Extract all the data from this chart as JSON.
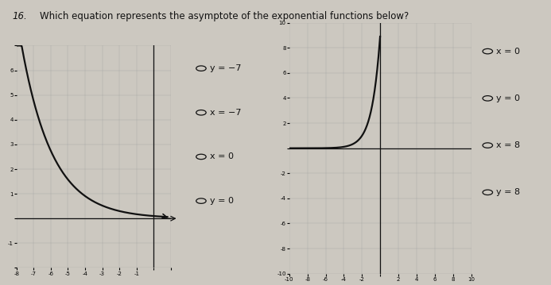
{
  "question_number": "16.",
  "question_text": "Which equation represents the asymptote of the exponential functions below?",
  "bg_color": "#ccc8c0",
  "graph1": {
    "xlim": [
      -8,
      1
    ],
    "ylim": [
      -2,
      7
    ],
    "xticks": [
      -8,
      -7,
      -6,
      -5,
      -4,
      -3,
      -2,
      -1,
      0,
      1
    ],
    "yticks": [
      -2,
      -1,
      0,
      1,
      2,
      3,
      4,
      5,
      6,
      7
    ],
    "xtick_labels": [
      "-8",
      "-7",
      "-6",
      "-5",
      "-4",
      "-3",
      "-2",
      "-1",
      "",
      ""
    ],
    "ytick_labels": [
      "",
      "-1",
      "",
      "1",
      "2",
      "3",
      "4",
      "5",
      "6",
      ""
    ]
  },
  "graph2": {
    "xlim": [
      -10,
      10
    ],
    "ylim": [
      -10,
      10
    ],
    "xticks": [
      -10,
      -8,
      -6,
      -4,
      -2,
      0,
      2,
      4,
      6,
      8,
      10
    ],
    "yticks": [
      -10,
      -8,
      -6,
      -4,
      -2,
      0,
      2,
      4,
      6,
      8,
      10
    ],
    "xtick_labels": [
      "-10",
      "-8",
      "-6",
      "-4",
      "-2",
      "",
      "2",
      "4",
      "6",
      "8",
      "10"
    ],
    "ytick_labels": [
      "-10",
      "-8",
      "-6",
      "-4",
      "-2",
      "",
      "2",
      "4",
      "6",
      "8",
      "10"
    ]
  },
  "options_left": [
    "y = −7",
    "x = −7",
    "x = 0",
    "y = 0"
  ],
  "options_right": [
    "x = 0",
    "y = 0",
    "x = 8",
    "y = 8"
  ],
  "text_color": "#111111",
  "axis_color": "#111111",
  "curve_color": "#111111",
  "grid_color": "#999999",
  "radio_color": "#111111"
}
